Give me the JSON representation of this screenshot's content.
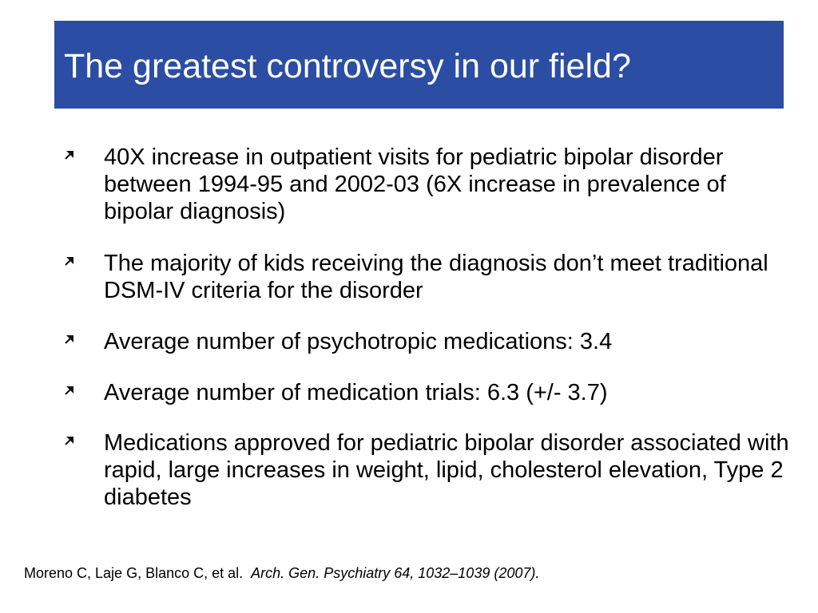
{
  "slide": {
    "title": "The greatest controversy in our field?",
    "title_bar_color": "#2c4da4",
    "bullet_marker_icon": "diagonal-arrow-icon",
    "bullets": [
      {
        "text": "40X increase in outpatient visits for pediatric bipolar disorder between 1994-95 and 2002-03 (6X increase in prevalence of bipolar diagnosis)"
      },
      {
        "text": "The majority of kids receiving the diagnosis don’t meet traditional DSM-IV criteria for the disorder"
      },
      {
        "text": "Average number of psychotropic medications: 3.4"
      },
      {
        "text": "Average number of medication trials: 6.3 (+/- 3.7)"
      },
      {
        "text": "Medications approved for pediatric bipolar disorder associated with rapid, large increases in weight, lipid, cholesterol elevation, Type 2 diabetes"
      }
    ],
    "citation": {
      "authors": "Moreno C, Laje G, Blanco C, et al.",
      "journal": "Arch. Gen. Psychiatry 64, 1032–1039 (2007)."
    }
  }
}
